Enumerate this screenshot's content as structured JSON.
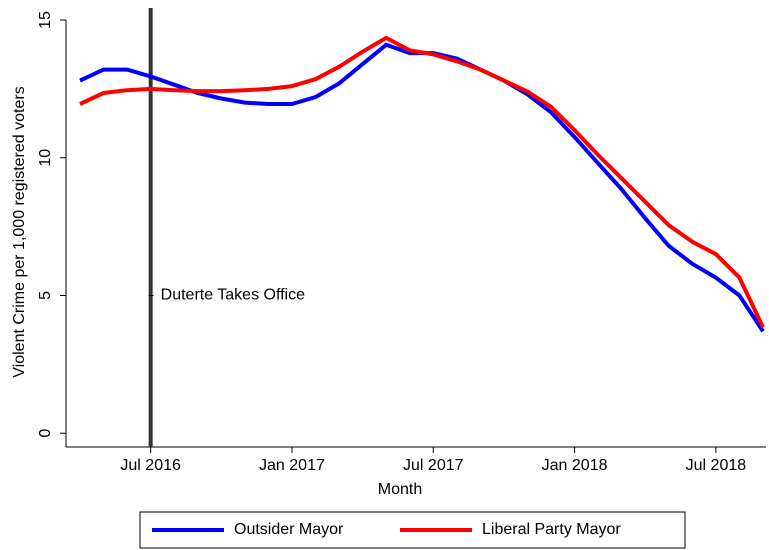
{
  "chart_data": {
    "type": "line",
    "xlabel": "Month",
    "ylabel": "Violent Crime per 1,000 registered voters",
    "x": [
      "2016-04",
      "2016-05",
      "2016-06",
      "2016-07",
      "2016-08",
      "2016-09",
      "2016-10",
      "2016-11",
      "2016-12",
      "2017-01",
      "2017-02",
      "2017-03",
      "2017-04",
      "2017-05",
      "2017-06",
      "2017-07",
      "2017-08",
      "2017-09",
      "2017-10",
      "2017-11",
      "2017-12",
      "2018-01",
      "2018-02",
      "2018-03",
      "2018-04",
      "2018-05",
      "2018-06",
      "2018-07",
      "2018-08",
      "2018-09"
    ],
    "series": [
      {
        "name": "Outsider Mayor",
        "color": "#0000ff",
        "values": [
          12.8,
          13.2,
          13.2,
          12.95,
          12.65,
          12.35,
          12.15,
          12.0,
          11.95,
          11.95,
          12.2,
          12.7,
          13.4,
          14.1,
          13.8,
          13.8,
          13.6,
          13.2,
          12.8,
          12.3,
          11.65,
          10.75,
          9.8,
          8.85,
          7.8,
          6.8,
          6.15,
          5.65,
          5.0,
          3.7
        ]
      },
      {
        "name": "Liberal Party Mayor",
        "color": "#ff0000",
        "values": [
          11.95,
          12.35,
          12.45,
          12.5,
          12.45,
          12.42,
          12.42,
          12.45,
          12.5,
          12.6,
          12.85,
          13.3,
          13.85,
          14.35,
          13.9,
          13.75,
          13.5,
          13.2,
          12.8,
          12.4,
          11.85,
          11.0,
          10.1,
          9.25,
          8.4,
          7.55,
          6.95,
          6.5,
          5.65,
          3.85
        ]
      }
    ],
    "xticks": [
      {
        "value": "2016-07",
        "label": "Jul 2016"
      },
      {
        "value": "2017-01",
        "label": "Jan 2017"
      },
      {
        "value": "2017-07",
        "label": "Jul 2017"
      },
      {
        "value": "2018-01",
        "label": "Jan 2018"
      },
      {
        "value": "2018-07",
        "label": "Jul 2018"
      }
    ],
    "ylim": [
      -0.5,
      15
    ],
    "yticks": [
      0,
      5,
      10,
      15
    ],
    "annotations": [
      {
        "x": "2016-07",
        "y": 5,
        "text": "Duterte Takes Office"
      }
    ],
    "legend": "bottom"
  }
}
